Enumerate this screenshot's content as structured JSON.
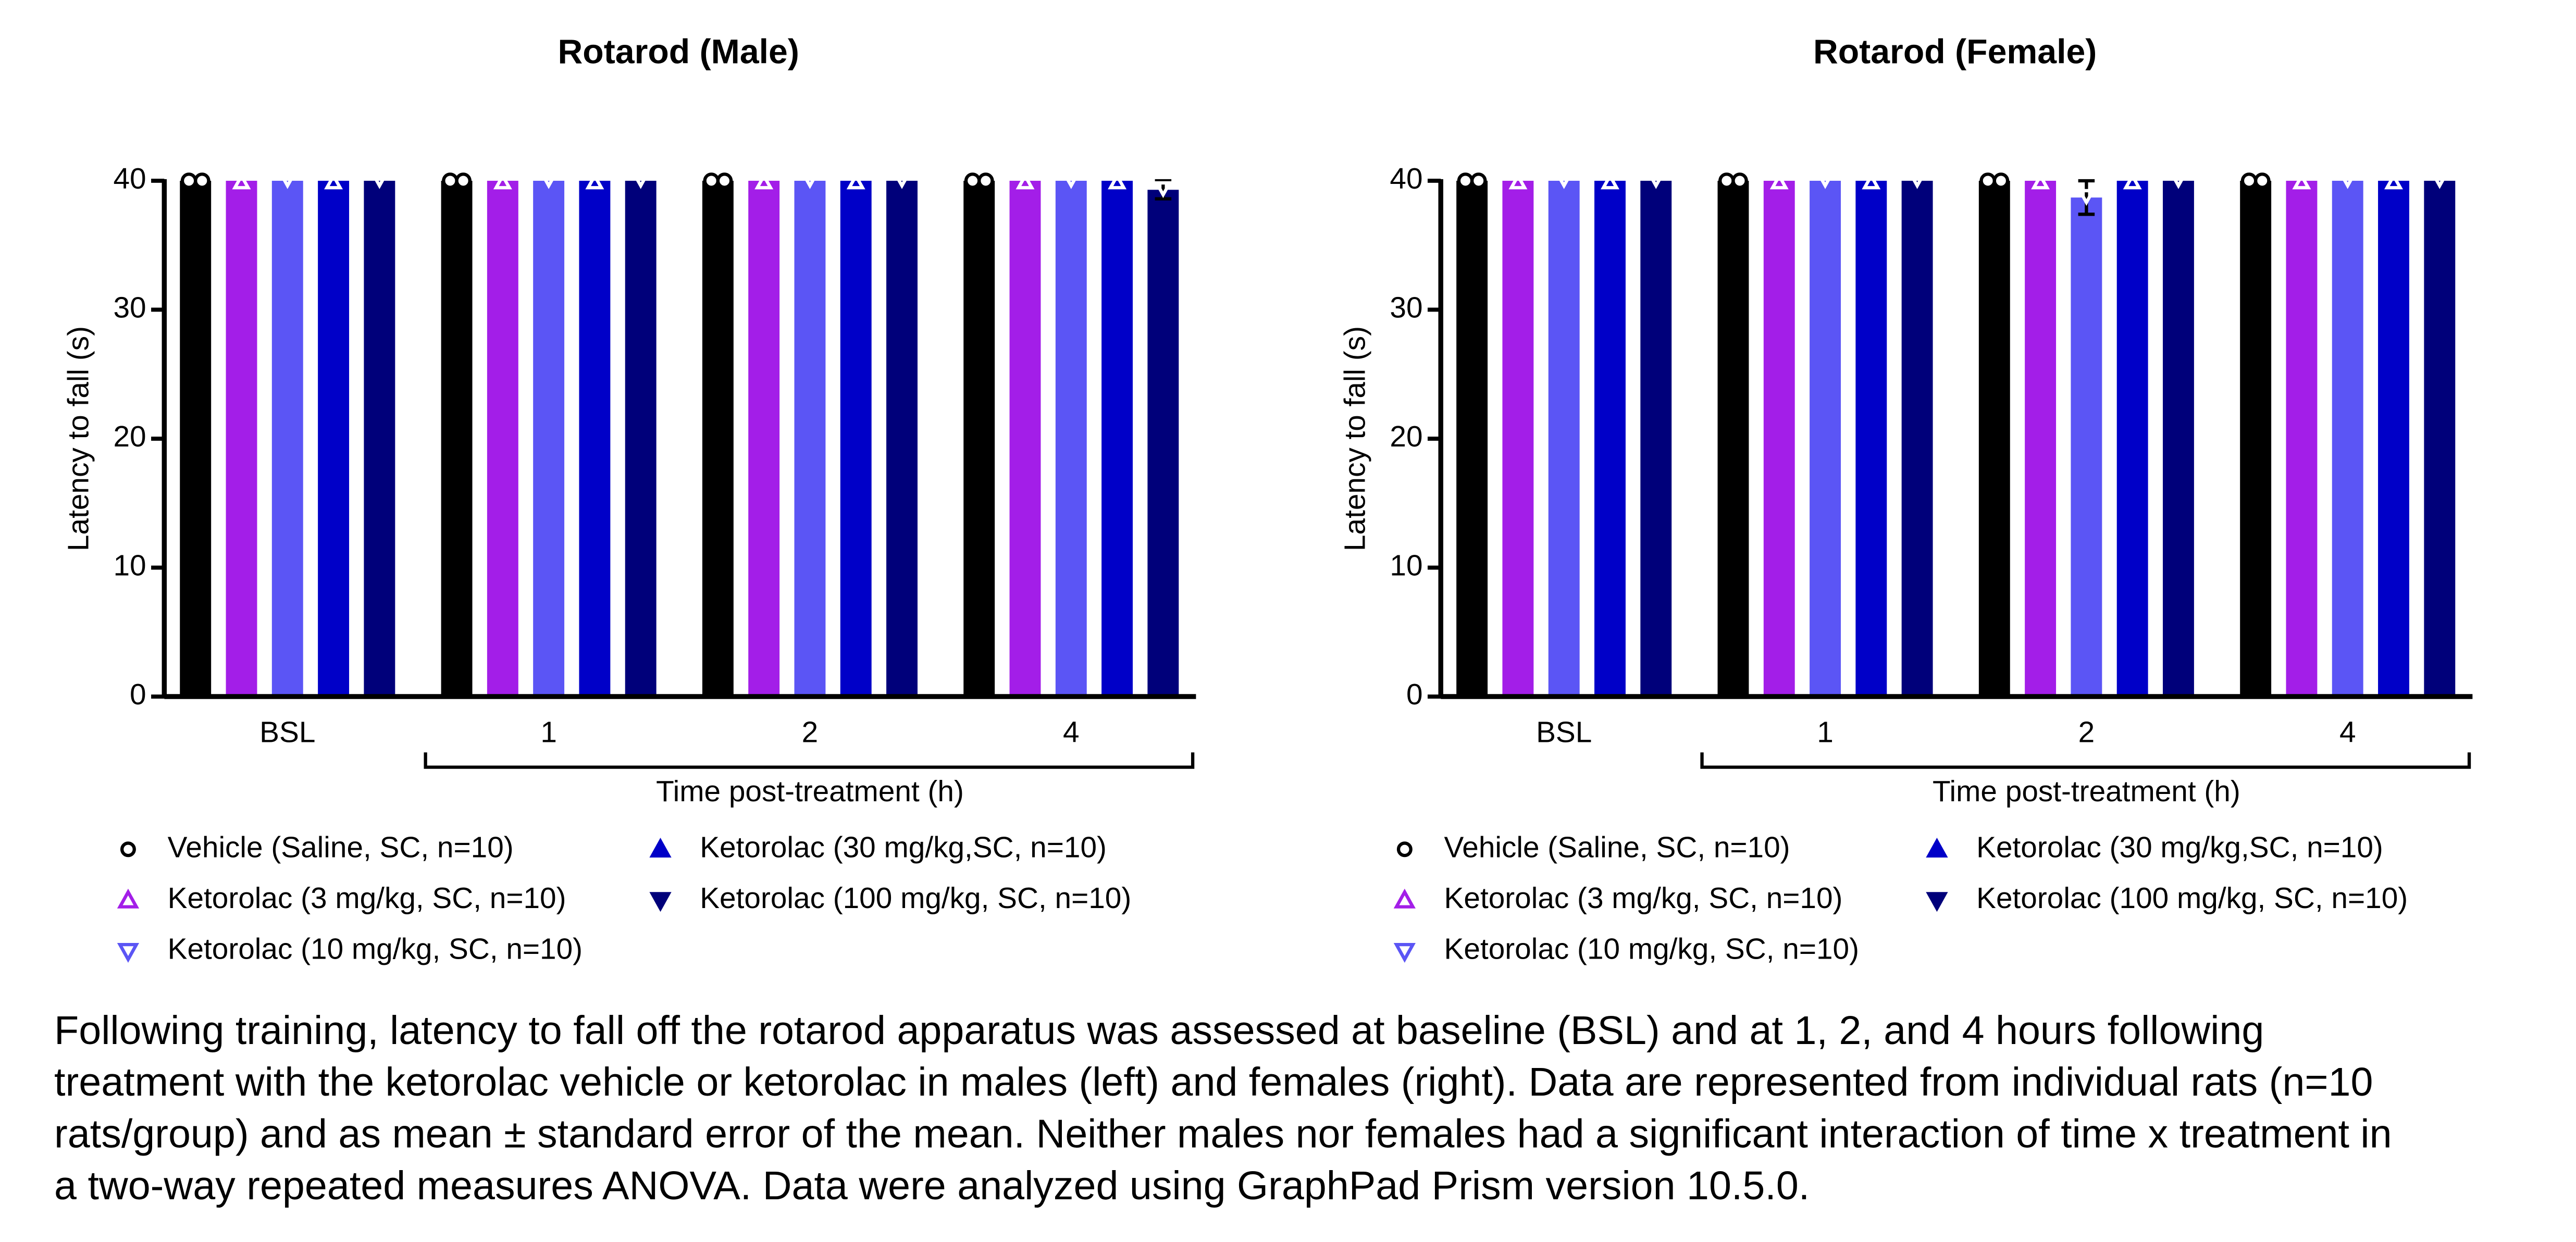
{
  "chart_data": [
    {
      "type": "bar",
      "title": "Rotarod (Male)",
      "y_label": "Latency to fall (s)",
      "x_label": "Time post-treatment (h)",
      "categories": [
        "BSL",
        "1",
        "2",
        "4"
      ],
      "ylim": [
        0,
        40
      ],
      "yticks": [
        0,
        10,
        20,
        30,
        40
      ],
      "series": [
        {
          "name": "Vehicle (Saline, SC, n=10)",
          "color": "#000000",
          "marker": "circle",
          "values": [
            40,
            40,
            40,
            40
          ],
          "errors": [
            0,
            0,
            0,
            0
          ]
        },
        {
          "name": "Ketorolac (3 mg/kg, SC, n=10)",
          "color": "#a31ee8",
          "marker": "triangle-up",
          "values": [
            40,
            40,
            40,
            40
          ],
          "errors": [
            0,
            0,
            0,
            0
          ]
        },
        {
          "name": "Ketorolac (10 mg/kg, SC, n=10)",
          "color": "#5b55f5",
          "marker": "triangle-down",
          "values": [
            40,
            40,
            40,
            40
          ],
          "errors": [
            0,
            0,
            0,
            0
          ]
        },
        {
          "name": "Ketorolac (30 mg/kg,SC, n=10)",
          "color": "#0000c8",
          "marker": "triangle-up",
          "values": [
            40,
            40,
            40,
            40
          ],
          "errors": [
            0,
            0,
            0,
            0
          ]
        },
        {
          "name": "Ketorolac (100 mg/kg, SC, n=10)",
          "color": "#00007a",
          "marker": "triangle-down",
          "values": [
            40,
            40,
            40,
            39.3
          ],
          "errors": [
            0,
            0,
            0,
            0.7
          ]
        }
      ]
    },
    {
      "type": "bar",
      "title": "Rotarod (Female)",
      "y_label": "Latency to fall (s)",
      "x_label": "Time post-treatment (h)",
      "categories": [
        "BSL",
        "1",
        "2",
        "4"
      ],
      "ylim": [
        0,
        40
      ],
      "yticks": [
        0,
        10,
        20,
        30,
        40
      ],
      "series": [
        {
          "name": "Vehicle (Saline, SC, n=10)",
          "color": "#000000",
          "marker": "circle",
          "values": [
            40,
            40,
            40,
            40
          ],
          "errors": [
            0,
            0,
            0,
            0
          ]
        },
        {
          "name": "Ketorolac (3 mg/kg, SC, n=10)",
          "color": "#a31ee8",
          "marker": "triangle-up",
          "values": [
            40,
            40,
            40,
            40
          ],
          "errors": [
            0,
            0,
            0,
            0
          ]
        },
        {
          "name": "Ketorolac (10 mg/kg, SC, n=10)",
          "color": "#5b55f5",
          "marker": "triangle-down",
          "values": [
            40,
            40,
            38.7,
            40
          ],
          "errors": [
            0,
            0,
            1.3,
            0
          ]
        },
        {
          "name": "Ketorolac (30 mg/kg,SC, n=10)",
          "color": "#0000c8",
          "marker": "triangle-up",
          "values": [
            40,
            40,
            40,
            40
          ],
          "errors": [
            0,
            0,
            0,
            0
          ]
        },
        {
          "name": "Ketorolac (100 mg/kg, SC, n=10)",
          "color": "#00007a",
          "marker": "triangle-down",
          "values": [
            40,
            40,
            40,
            40
          ],
          "errors": [
            0,
            0,
            0,
            0
          ]
        }
      ]
    }
  ],
  "caption": [
    "Following training, latency to fall off the rotarod apparatus was assessed at baseline (BSL) and at 1, 2, and 4 hours following",
    "treatment with the ketorolac vehicle or ketorolac in males (left) and females (right). Data are represented from individual rats (n=10",
    "rats/group) and as mean ± standard error of the mean. Neither males nor females had a significant interaction of time x treatment in",
    "a two-way repeated measures ANOVA. Data were analyzed using GraphPad Prism version 10.5.0."
  ]
}
